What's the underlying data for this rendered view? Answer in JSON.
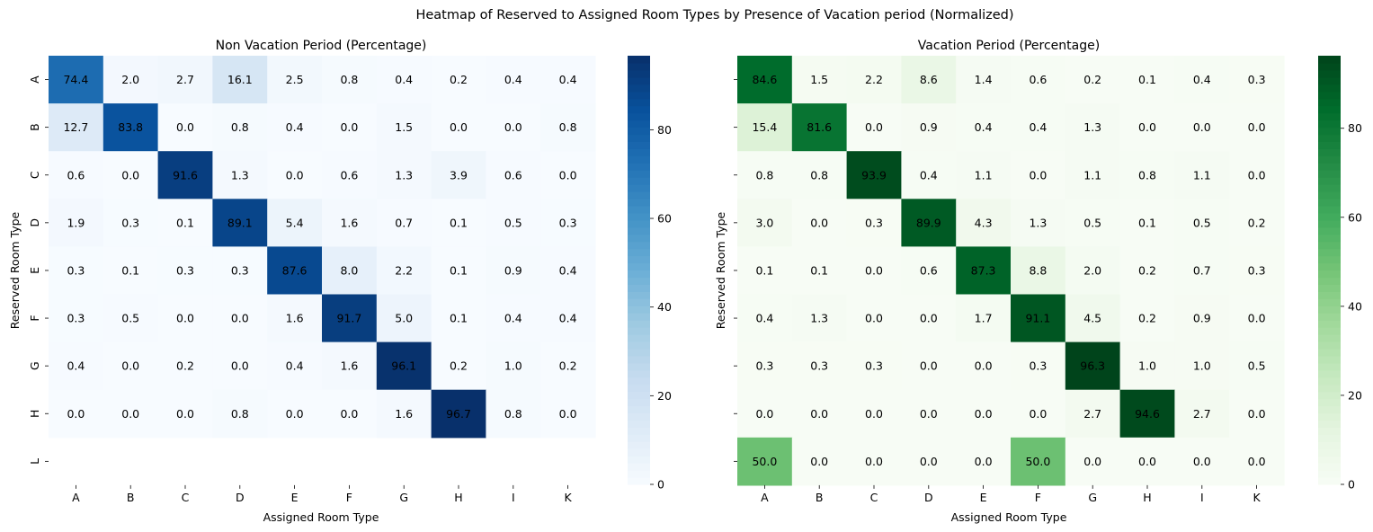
{
  "figure": {
    "title": "Heatmap of Reserved to Assigned Room Types by Presence of Vacation period (Normalized)"
  },
  "chart_data": [
    {
      "type": "heatmap",
      "title": "Non Vacation Period (Percentage)",
      "xlabel": "Assigned Room Type",
      "ylabel": "Reserved Room Type",
      "x_categories": [
        "A",
        "B",
        "C",
        "D",
        "E",
        "F",
        "G",
        "H",
        "I",
        "K"
      ],
      "y_categories": [
        "A",
        "B",
        "C",
        "D",
        "E",
        "F",
        "G",
        "H",
        "L"
      ],
      "colormap": "Blues",
      "color_low": "#f7fbff",
      "color_high": "#08306b",
      "vmin": 0,
      "vmax": 96.7,
      "colorbar_ticks": [
        0,
        20,
        40,
        60,
        80
      ],
      "values": [
        [
          74.4,
          2.0,
          2.7,
          16.1,
          2.5,
          0.8,
          0.4,
          0.2,
          0.4,
          0.4
        ],
        [
          12.7,
          83.8,
          0.0,
          0.8,
          0.4,
          0.0,
          1.5,
          0.0,
          0.0,
          0.8
        ],
        [
          0.6,
          0.0,
          91.6,
          1.3,
          0.0,
          0.6,
          1.3,
          3.9,
          0.6,
          0.0
        ],
        [
          1.9,
          0.3,
          0.1,
          89.1,
          5.4,
          1.6,
          0.7,
          0.1,
          0.5,
          0.3
        ],
        [
          0.3,
          0.1,
          0.3,
          0.3,
          87.6,
          8.0,
          2.2,
          0.1,
          0.9,
          0.4
        ],
        [
          0.3,
          0.5,
          0.0,
          0.0,
          1.6,
          91.7,
          5.0,
          0.1,
          0.4,
          0.4
        ],
        [
          0.4,
          0.0,
          0.2,
          0.0,
          0.4,
          1.6,
          96.1,
          0.2,
          1.0,
          0.2
        ],
        [
          0.0,
          0.0,
          0.0,
          0.8,
          0.0,
          0.0,
          1.6,
          96.7,
          0.8,
          0.0
        ],
        [
          null,
          null,
          null,
          null,
          null,
          null,
          null,
          null,
          null,
          null
        ]
      ]
    },
    {
      "type": "heatmap",
      "title": "Vacation Period (Percentage)",
      "xlabel": "Assigned Room Type",
      "ylabel": "Reserved Room Type",
      "x_categories": [
        "A",
        "B",
        "C",
        "D",
        "E",
        "F",
        "G",
        "H",
        "I",
        "K"
      ],
      "y_categories": [
        "A",
        "B",
        "C",
        "D",
        "E",
        "F",
        "G",
        "H",
        "L"
      ],
      "colormap": "Greens",
      "color_low": "#f7fcf5",
      "color_high": "#00441b",
      "vmin": 0,
      "vmax": 96.3,
      "colorbar_ticks": [
        0,
        20,
        40,
        60,
        80
      ],
      "values": [
        [
          84.6,
          1.5,
          2.2,
          8.6,
          1.4,
          0.6,
          0.2,
          0.1,
          0.4,
          0.3
        ],
        [
          15.4,
          81.6,
          0.0,
          0.9,
          0.4,
          0.4,
          1.3,
          0.0,
          0.0,
          0.0
        ],
        [
          0.8,
          0.8,
          93.9,
          0.4,
          1.1,
          0.0,
          1.1,
          0.8,
          1.1,
          0.0
        ],
        [
          3.0,
          0.0,
          0.3,
          89.9,
          4.3,
          1.3,
          0.5,
          0.1,
          0.5,
          0.2
        ],
        [
          0.1,
          0.1,
          0.0,
          0.6,
          87.3,
          8.8,
          2.0,
          0.2,
          0.7,
          0.3
        ],
        [
          0.4,
          1.3,
          0.0,
          0.0,
          1.7,
          91.1,
          4.5,
          0.2,
          0.9,
          0.0
        ],
        [
          0.3,
          0.3,
          0.3,
          0.0,
          0.0,
          0.3,
          96.3,
          1.0,
          1.0,
          0.5
        ],
        [
          0.0,
          0.0,
          0.0,
          0.0,
          0.0,
          0.0,
          2.7,
          94.6,
          2.7,
          0.0
        ],
        [
          50.0,
          0.0,
          0.0,
          0.0,
          0.0,
          50.0,
          0.0,
          0.0,
          0.0,
          0.0
        ]
      ]
    }
  ]
}
